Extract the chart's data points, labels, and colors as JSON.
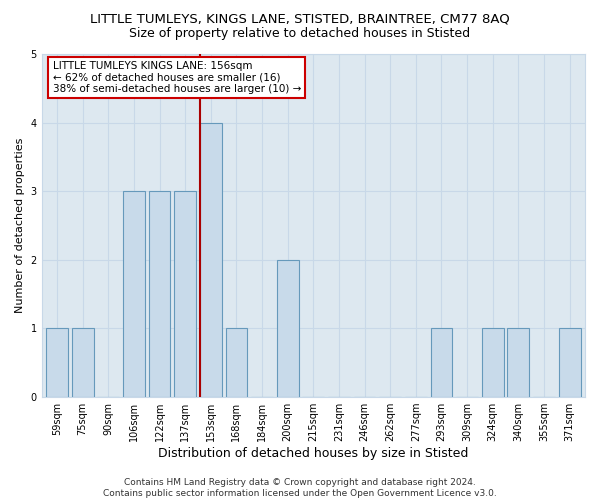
{
  "title": "LITTLE TUMLEYS, KINGS LANE, STISTED, BRAINTREE, CM77 8AQ",
  "subtitle": "Size of property relative to detached houses in Stisted",
  "xlabel": "Distribution of detached houses by size in Stisted",
  "ylabel": "Number of detached properties",
  "categories": [
    "59sqm",
    "75sqm",
    "90sqm",
    "106sqm",
    "122sqm",
    "137sqm",
    "153sqm",
    "168sqm",
    "184sqm",
    "200sqm",
    "215sqm",
    "231sqm",
    "246sqm",
    "262sqm",
    "277sqm",
    "293sqm",
    "309sqm",
    "324sqm",
    "340sqm",
    "355sqm",
    "371sqm"
  ],
  "values": [
    1,
    1,
    0,
    3,
    3,
    3,
    4,
    1,
    0,
    2,
    0,
    0,
    0,
    0,
    0,
    1,
    0,
    1,
    1,
    0,
    1
  ],
  "bar_color": "#c8daea",
  "bar_edge_color": "#6699bb",
  "highlight_index": 6,
  "highlight_line_color": "#aa0000",
  "annotation_text": "LITTLE TUMLEYS KINGS LANE: 156sqm\n← 62% of detached houses are smaller (16)\n38% of semi-detached houses are larger (10) →",
  "annotation_box_color": "#ffffff",
  "annotation_box_edge_color": "#cc0000",
  "ylim": [
    0,
    5
  ],
  "yticks": [
    0,
    1,
    2,
    3,
    4,
    5
  ],
  "grid_color": "#c8d8e8",
  "background_color": "#dde8f0",
  "footer_text": "Contains HM Land Registry data © Crown copyright and database right 2024.\nContains public sector information licensed under the Open Government Licence v3.0.",
  "title_fontsize": 9.5,
  "subtitle_fontsize": 9,
  "annotation_fontsize": 7.5,
  "tick_fontsize": 7,
  "ylabel_fontsize": 8,
  "xlabel_fontsize": 9,
  "footer_fontsize": 6.5
}
